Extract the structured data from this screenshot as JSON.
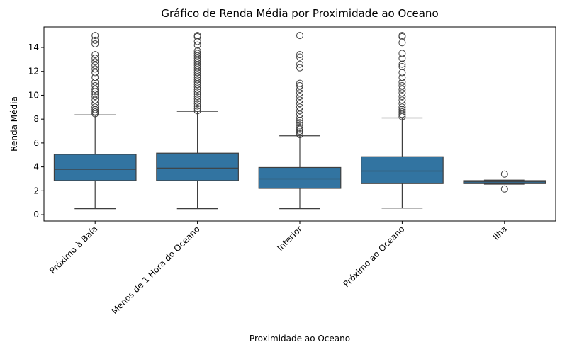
{
  "chart_data": {
    "type": "box",
    "title": "Gráfico de Renda Média por Proximidade ao Oceano",
    "x_label": "Proximidade ao Oceano",
    "y_label": "Renda Média",
    "categories": [
      "Próximo à Baía",
      "Menos de 1 Hora do Oceano",
      "Interior",
      "Próximo ao Oceano",
      "Ilha"
    ],
    "color": "#3274a1",
    "line_color": "#3f3f3f",
    "ylim": [
      -0.53,
      15.72
    ],
    "yticks": [
      0,
      2,
      4,
      6,
      8,
      10,
      12,
      14
    ],
    "boxes": [
      {
        "whislo": 0.5,
        "q1": 2.85,
        "med": 3.8,
        "q3": 5.05,
        "whishi": 8.35,
        "outliers": [
          8.45,
          8.6,
          8.8,
          9.0,
          9.3,
          9.6,
          9.9,
          10.1,
          10.3,
          10.5,
          10.8,
          11.1,
          11.5,
          11.9,
          12.2,
          12.5,
          12.8,
          13.1,
          13.4,
          14.3,
          14.6,
          15.0
        ]
      },
      {
        "whislo": 0.5,
        "q1": 2.85,
        "med": 3.9,
        "q3": 5.15,
        "whishi": 8.65,
        "outliers": [
          8.7,
          8.9,
          9.1,
          9.3,
          9.5,
          9.7,
          9.9,
          10.1,
          10.3,
          10.5,
          10.7,
          10.9,
          11.1,
          11.3,
          11.5,
          11.7,
          11.9,
          12.1,
          12.3,
          12.5,
          12.7,
          12.9,
          13.1,
          13.3,
          13.5,
          13.7,
          14.2,
          14.5,
          14.9,
          15.0
        ]
      },
      {
        "whislo": 0.5,
        "q1": 2.2,
        "med": 3.0,
        "q3": 3.95,
        "whishi": 6.6,
        "outliers": [
          6.7,
          6.85,
          7.0,
          7.15,
          7.3,
          7.5,
          7.7,
          7.9,
          8.1,
          8.4,
          8.7,
          9.0,
          9.3,
          9.6,
          9.9,
          10.2,
          10.5,
          10.8,
          11.0,
          12.3,
          12.6,
          13.2,
          13.4,
          15.0
        ]
      },
      {
        "whislo": 0.55,
        "q1": 2.6,
        "med": 3.65,
        "q3": 4.85,
        "whishi": 8.1,
        "outliers": [
          8.2,
          8.4,
          8.6,
          8.8,
          9.0,
          9.3,
          9.6,
          9.9,
          10.2,
          10.5,
          10.8,
          11.1,
          11.5,
          11.9,
          12.4,
          12.6,
          13.1,
          13.5,
          14.4,
          14.9,
          15.0
        ]
      },
      {
        "whislo": 2.55,
        "q1": 2.6,
        "med": 2.75,
        "q3": 2.85,
        "whishi": 2.9,
        "outliers": [
          3.4,
          2.15
        ]
      }
    ]
  }
}
